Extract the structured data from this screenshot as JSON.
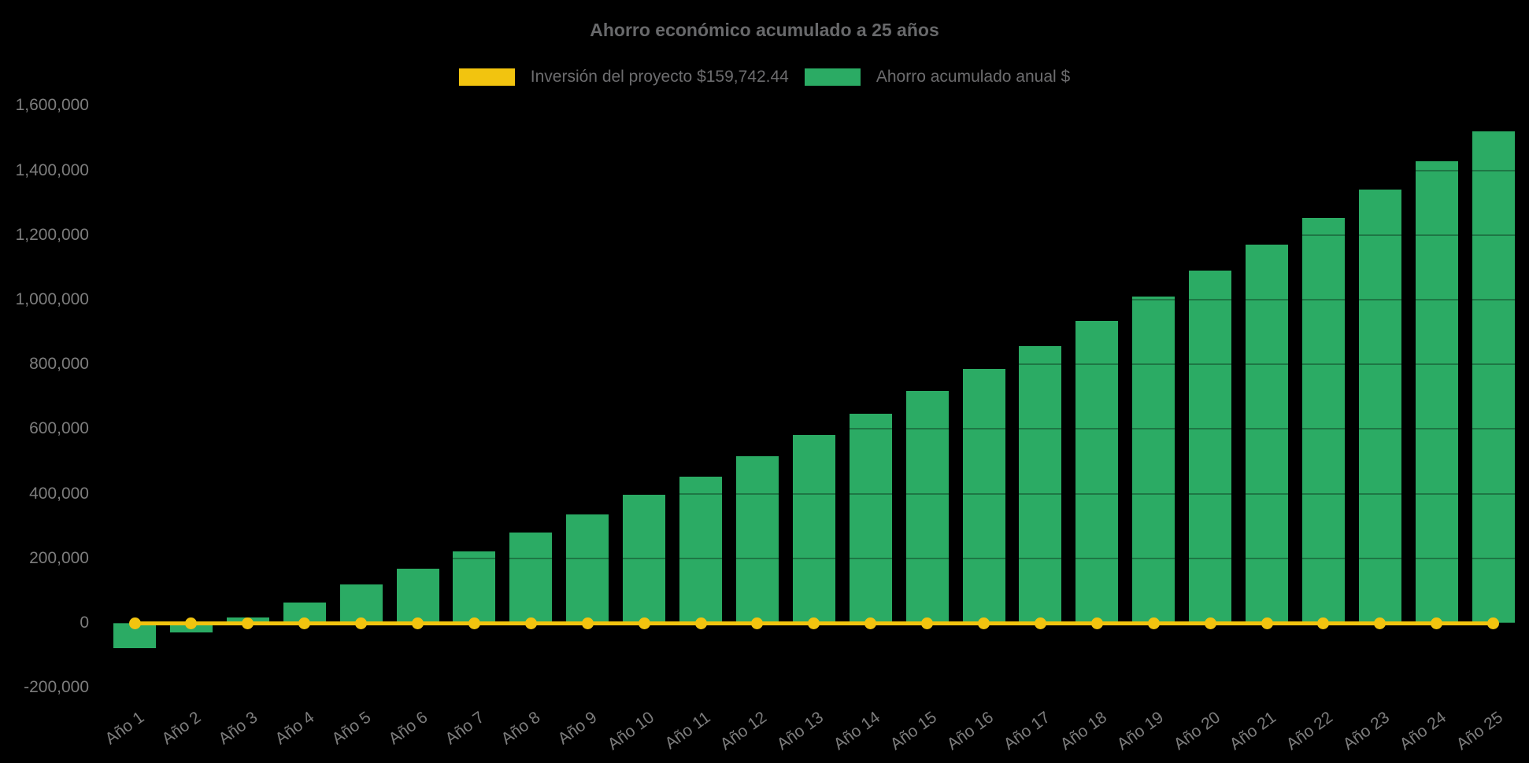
{
  "chart": {
    "title": "Ahorro económico acumulado a 25 años",
    "legend": [
      {
        "label": "Inversión del proyecto $159,742.44",
        "color": "#F2C40F"
      },
      {
        "label": "Ahorro acumulado anual $",
        "color": "#2BAB64"
      }
    ]
  },
  "chart_data": {
    "type": "bar",
    "title": "Ahorro económico acumulado a 25 años",
    "xlabel": "",
    "ylabel": "",
    "ylim": [
      -200000,
      1600000
    ],
    "grid": true,
    "legend_position": "top",
    "categories": [
      "Año 1",
      "Año 2",
      "Año 3",
      "Año 4",
      "Año 5",
      "Año 6",
      "Año 7",
      "Año 8",
      "Año 9",
      "Año 10",
      "Año 11",
      "Año 12",
      "Año 13",
      "Año 14",
      "Año 15",
      "Año 16",
      "Año 17",
      "Año 18",
      "Año 19",
      "Año 20",
      "Año 21",
      "Año 22",
      "Año 23",
      "Año 24",
      "Año 25"
    ],
    "series": [
      {
        "name": "Ahorro acumulado anual $",
        "type": "bar",
        "color": "#2BAB64",
        "values": [
          -78000,
          -28000,
          18000,
          64000,
          119000,
          168000,
          221000,
          279000,
          336000,
          397000,
          452000,
          516000,
          582000,
          647000,
          718000,
          786000,
          856000,
          934000,
          1010000,
          1090000,
          1170000,
          1253000,
          1341000,
          1428000,
          1521000
        ]
      },
      {
        "name": "Inversión del proyecto $159,742.44",
        "type": "line",
        "color": "#F2C40F",
        "marker": "circle",
        "values": [
          0,
          0,
          0,
          0,
          0,
          0,
          0,
          0,
          0,
          0,
          0,
          0,
          0,
          0,
          0,
          0,
          0,
          0,
          0,
          0,
          0,
          0,
          0,
          0,
          0
        ]
      }
    ],
    "y_ticks": [
      {
        "value": 1600000,
        "label": "1,600,000"
      },
      {
        "value": 1400000,
        "label": "1,400,000"
      },
      {
        "value": 1200000,
        "label": "1,200,000"
      },
      {
        "value": 1000000,
        "label": "1,000,000"
      },
      {
        "value": 800000,
        "label": "800,000"
      },
      {
        "value": 600000,
        "label": "600,000"
      },
      {
        "value": 400000,
        "label": "400,000"
      },
      {
        "value": 200000,
        "label": "200,000"
      },
      {
        "value": 0,
        "label": "0"
      },
      {
        "value": -200000,
        "label": "-200,000"
      }
    ]
  }
}
